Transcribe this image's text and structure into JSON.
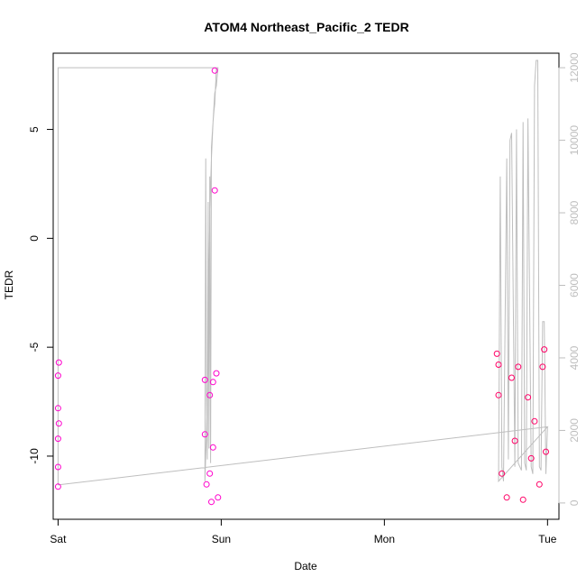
{
  "chart_data": {
    "type": "scatter",
    "title": "ATOM4 Northeast_Pacific_2 TEDR",
    "xlabel": "Date",
    "ylabel": "TEDR",
    "x_unit": "days since Sat 00:00",
    "xlim": [
      -0.03,
      3.07
    ],
    "ylim": [
      -12.9,
      8.5
    ],
    "x_ticks": [
      {
        "label": "Sat",
        "value": 0
      },
      {
        "label": "Sun",
        "value": 1
      },
      {
        "label": "Mon",
        "value": 2
      },
      {
        "label": "Tue",
        "value": 3
      }
    ],
    "y_ticks": [
      -10,
      -5,
      0,
      5
    ],
    "y2_ticks": [
      0,
      2000,
      4000,
      6000,
      8000,
      10000,
      12000
    ],
    "y2lim": [
      -450,
      12400
    ],
    "grid": false,
    "colors": {
      "points_early": "#ff00cc",
      "points_late": "#ff0066",
      "altitude_line": "#bebebe",
      "axis": "#000000",
      "right_axis": "#bebebe"
    },
    "series": [
      {
        "kind": "points",
        "x": [
          0.0,
          0.0,
          0.0,
          0.0,
          0.0,
          0.005,
          0.005,
          0.9,
          0.9,
          0.91,
          0.93,
          0.93,
          0.94,
          0.95,
          0.95,
          0.96,
          0.96,
          0.97,
          0.98,
          2.69,
          2.7,
          2.7,
          2.72,
          2.75,
          2.78,
          2.8,
          2.82,
          2.85,
          2.88,
          2.9,
          2.92,
          2.95,
          2.97,
          2.98,
          2.99
        ],
        "y": [
          -6.3,
          -7.8,
          -9.2,
          -10.5,
          -11.4,
          -5.7,
          -8.5,
          -6.5,
          -9.0,
          -11.3,
          -7.2,
          -10.8,
          -12.1,
          -6.6,
          -9.6,
          7.7,
          2.2,
          -6.2,
          -11.9,
          -5.3,
          -5.8,
          -7.2,
          -10.8,
          -11.9,
          -6.4,
          -9.3,
          -5.9,
          -12.0,
          -7.3,
          -10.1,
          -8.4,
          -11.3,
          -5.9,
          -5.1,
          -9.8
        ]
      },
      {
        "kind": "line",
        "name": "",
        "x": [
          0.0,
          0.005,
          0.01,
          0.98,
          0.97,
          0.96,
          0.955,
          0.95,
          0.94,
          0.93,
          0.92,
          0.91,
          0.9,
          0.905,
          0.91,
          0.915,
          0.92,
          0.925,
          0.93,
          0.935,
          0.94,
          0.95,
          0.96,
          0.97,
          0.98,
          0.0,
          0.0,
          0.005,
          3.0,
          2.7,
          2.71,
          2.72,
          2.73,
          2.75,
          2.76,
          2.77,
          2.78,
          2.8,
          2.81,
          2.82,
          2.84,
          2.85,
          2.86,
          2.87,
          2.88,
          2.9,
          2.91,
          2.92,
          2.93,
          2.94,
          2.95,
          2.96,
          2.97,
          2.98,
          2.99,
          3.0
        ],
        "y2": [
          12000,
          12000,
          12000,
          12000,
          12000,
          11000,
          10800,
          10500,
          9500,
          8000,
          4000,
          2000,
          600,
          9500,
          3000,
          1200,
          8300,
          1500,
          9000,
          1100,
          9800,
          10500,
          11300,
          11500,
          12000,
          12000,
          500,
          500,
          2100,
          600,
          9000,
          1000,
          600,
          9500,
          1200,
          10000,
          10200,
          1000,
          10300,
          1100,
          900,
          10500,
          1100,
          900,
          10600,
          1000,
          800,
          11500,
          12200,
          12200,
          1000,
          900,
          5000,
          5000,
          800,
          2100
        ]
      }
    ]
  }
}
